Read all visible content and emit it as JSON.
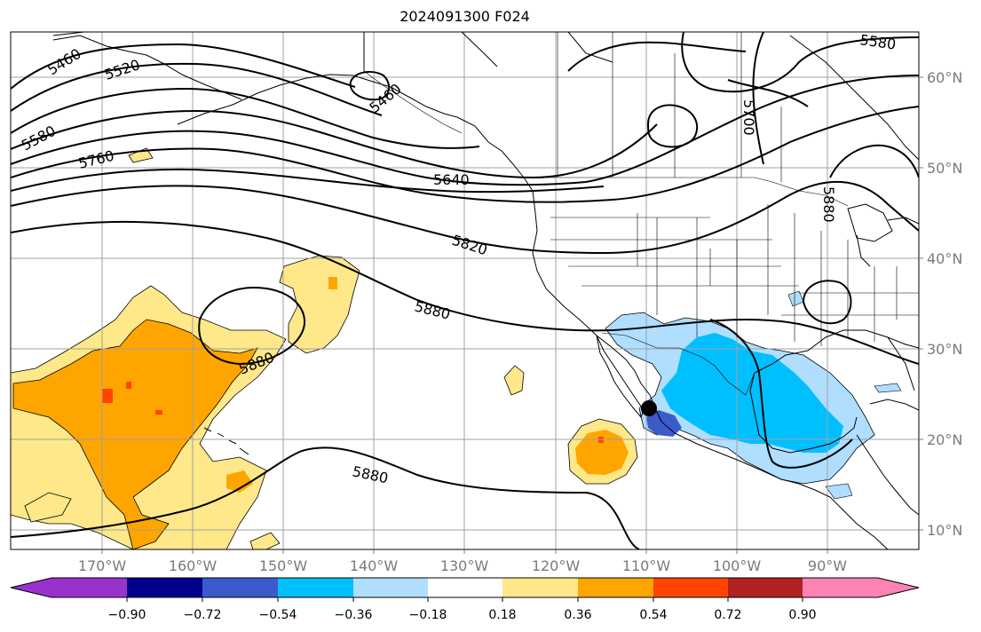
{
  "title": "2024091300 F024",
  "map": {
    "projection": "equirectangular",
    "extent_lon": [
      -180,
      -80
    ],
    "extent_lat": [
      8,
      65
    ],
    "gridlines": true
  },
  "axes": {
    "x_ticks": [
      "170°W",
      "160°W",
      "150°W",
      "140°W",
      "130°W",
      "120°W",
      "110°W",
      "100°W",
      "90°W"
    ],
    "y_ticks": [
      "60°N",
      "50°N",
      "40°N",
      "30°N",
      "20°N",
      "10°N"
    ]
  },
  "contour_labels": [
    "5460",
    "5520",
    "5580",
    "5760",
    "5640",
    "5460",
    "5700",
    "5580",
    "5820",
    "5880",
    "5880",
    "5880",
    "5880"
  ],
  "marker": {
    "type": "storm-center",
    "color": "#000000"
  },
  "colorbar": {
    "labels": [
      "−0.90",
      "−0.72",
      "−0.54",
      "−0.36",
      "−0.18",
      "0.18",
      "0.36",
      "0.54",
      "0.72",
      "0.90"
    ],
    "colors": [
      "#9932cc",
      "#00008b",
      "#3a5bcc",
      "#00bfff",
      "#afdeff",
      "#ffffff",
      "#ffe88a",
      "#ffa500",
      "#ff4500",
      "#b22222",
      "#ff82b4"
    ],
    "extend": "both"
  },
  "colors": {
    "orange": "#ffa500",
    "yellow": "#ffe88a",
    "cyan": "#00bfff",
    "light_blue": "#afdeff",
    "blue": "#3a5bcc",
    "red": "#ff4500"
  }
}
